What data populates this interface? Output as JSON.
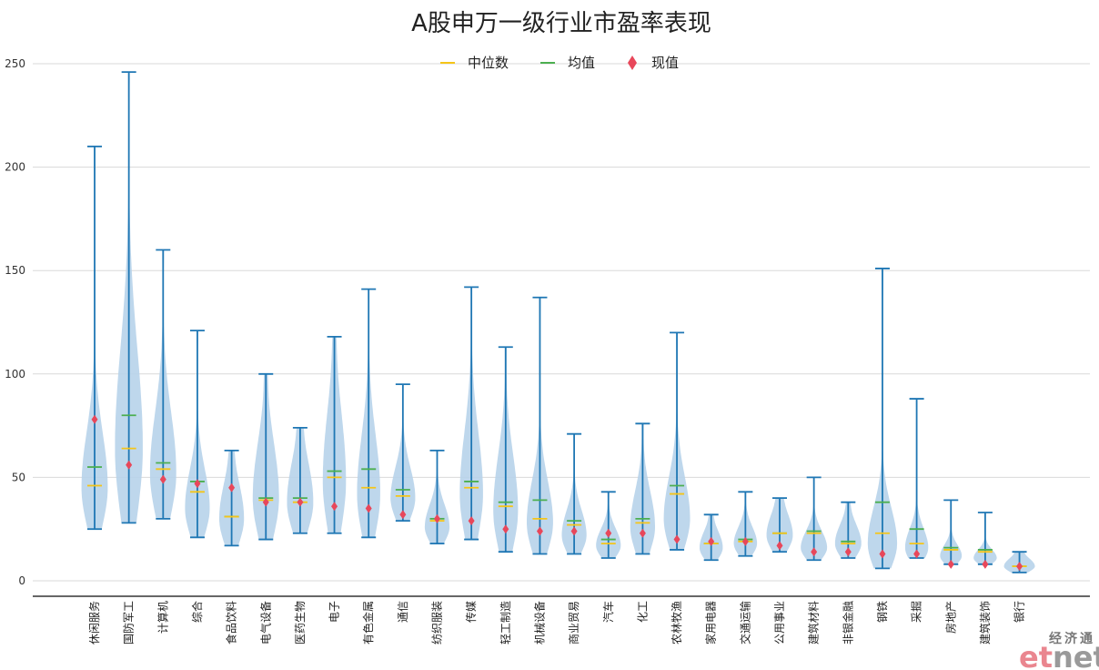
{
  "chart_data": {
    "type": "violin",
    "title": "A股申万一级行业市盈率表现",
    "ylim": [
      -7,
      262
    ],
    "yticks": [
      0,
      50,
      100,
      150,
      200,
      250
    ],
    "grid": "horizontal",
    "legend_position": "top-center",
    "legend": [
      {
        "key": "median",
        "label": "中位数",
        "marker": "line",
        "color": "#f5c518"
      },
      {
        "key": "mean",
        "label": "均值",
        "marker": "line",
        "color": "#4caf50"
      },
      {
        "key": "current",
        "label": "现值",
        "marker": "diamond",
        "color": "#e8475a"
      }
    ],
    "colors": {
      "whisker": "#1f77b4",
      "violin": "#b7d3ea",
      "median": "#f5c518",
      "mean": "#4caf50",
      "current": "#e8475a",
      "grid": "#d9d9d9",
      "axis": "#333333"
    },
    "categories": [
      "休闲服务",
      "国防军工",
      "计算机",
      "综合",
      "食品饮料",
      "电气设备",
      "医药生物",
      "电子",
      "有色金属",
      "通信",
      "纺织服装",
      "传媒",
      "轻工制造",
      "机械设备",
      "商业贸易",
      "汽车",
      "化工",
      "农林牧渔",
      "家用电器",
      "交通运输",
      "公用事业",
      "建筑材料",
      "非银金融",
      "钢铁",
      "采掘",
      "房地产",
      "建筑装饰",
      "银行"
    ],
    "series": [
      {
        "name": "休闲服务",
        "min": 25,
        "max": 210,
        "median": 46,
        "mean": 55,
        "current": 78,
        "peak": 45,
        "width": 0.85
      },
      {
        "name": "国防军工",
        "min": 28,
        "max": 246,
        "median": 64,
        "mean": 80,
        "current": 56,
        "peak": 64,
        "width": 0.9
      },
      {
        "name": "计算机",
        "min": 30,
        "max": 160,
        "median": 54,
        "mean": 57,
        "current": 49,
        "peak": 52,
        "width": 0.85
      },
      {
        "name": "综合",
        "min": 21,
        "max": 121,
        "median": 43,
        "mean": 48,
        "current": 47,
        "peak": 35,
        "width": 0.8
      },
      {
        "name": "食品饮料",
        "min": 17,
        "max": 63,
        "median": 31,
        "mean": 31,
        "current": 45,
        "peak": 30,
        "width": 0.8
      },
      {
        "name": "电气设备",
        "min": 20,
        "max": 100,
        "median": 39,
        "mean": 40,
        "current": 38,
        "peak": 40,
        "width": 0.85
      },
      {
        "name": "医药生物",
        "min": 23,
        "max": 74,
        "median": 38,
        "mean": 40,
        "current": 38,
        "peak": 38,
        "width": 0.85
      },
      {
        "name": "电子",
        "min": 23,
        "max": 118,
        "median": 50,
        "mean": 53,
        "current": 36,
        "peak": 48,
        "width": 0.75
      },
      {
        "name": "有色金属",
        "min": 21,
        "max": 141,
        "median": 45,
        "mean": 54,
        "current": 35,
        "peak": 42,
        "width": 0.75
      },
      {
        "name": "通信",
        "min": 29,
        "max": 95,
        "median": 41,
        "mean": 44,
        "current": 32,
        "peak": 40,
        "width": 0.8
      },
      {
        "name": "纺织服装",
        "min": 18,
        "max": 63,
        "median": 29,
        "mean": 30,
        "current": 30,
        "peak": 26,
        "width": 0.8
      },
      {
        "name": "传媒",
        "min": 20,
        "max": 142,
        "median": 45,
        "mean": 48,
        "current": 29,
        "peak": 42,
        "width": 0.75
      },
      {
        "name": "轻工制造",
        "min": 14,
        "max": 113,
        "median": 36,
        "mean": 38,
        "current": 25,
        "peak": 34,
        "width": 0.8
      },
      {
        "name": "机械设备",
        "min": 13,
        "max": 137,
        "median": 30,
        "mean": 39,
        "current": 24,
        "peak": 28,
        "width": 0.85
      },
      {
        "name": "商业贸易",
        "min": 13,
        "max": 71,
        "median": 27,
        "mean": 29,
        "current": 24,
        "peak": 22,
        "width": 0.8
      },
      {
        "name": "汽车",
        "min": 11,
        "max": 43,
        "median": 18,
        "mean": 20,
        "current": 23,
        "peak": 17,
        "width": 0.8
      },
      {
        "name": "化工",
        "min": 13,
        "max": 76,
        "median": 28,
        "mean": 30,
        "current": 23,
        "peak": 26,
        "width": 0.8
      },
      {
        "name": "农林牧渔",
        "min": 15,
        "max": 120,
        "median": 42,
        "mean": 46,
        "current": 20,
        "peak": 30,
        "width": 0.85
      },
      {
        "name": "家用电器",
        "min": 10,
        "max": 32,
        "median": 18,
        "mean": 18,
        "current": 19,
        "peak": 16,
        "width": 0.75
      },
      {
        "name": "交通运输",
        "min": 12,
        "max": 43,
        "median": 19,
        "mean": 20,
        "current": 19,
        "peak": 18,
        "width": 0.75
      },
      {
        "name": "公用事业",
        "min": 14,
        "max": 40,
        "median": 23,
        "mean": 23,
        "current": 17,
        "peak": 22,
        "width": 0.85
      },
      {
        "name": "建筑材料",
        "min": 10,
        "max": 50,
        "median": 23,
        "mean": 24,
        "current": 14,
        "peak": 16,
        "width": 0.85
      },
      {
        "name": "非银金融",
        "min": 11,
        "max": 38,
        "median": 18,
        "mean": 19,
        "current": 14,
        "peak": 18,
        "width": 0.85
      },
      {
        "name": "钢铁",
        "min": 6,
        "max": 151,
        "median": 23,
        "mean": 38,
        "current": 13,
        "peak": 18,
        "width": 0.95
      },
      {
        "name": "采掘",
        "min": 11,
        "max": 88,
        "median": 18,
        "mean": 25,
        "current": 13,
        "peak": 16,
        "width": 0.75
      },
      {
        "name": "房地产",
        "min": 8,
        "max": 39,
        "median": 15,
        "mean": 16,
        "current": 8,
        "peak": 12,
        "width": 0.7
      },
      {
        "name": "建筑装饰",
        "min": 8,
        "max": 33,
        "median": 14,
        "mean": 15,
        "current": 8,
        "peak": 11,
        "width": 0.75
      },
      {
        "name": "银行",
        "min": 4,
        "max": 14,
        "median": 7,
        "mean": 7,
        "current": 7,
        "peak": 7,
        "width": 1.0
      }
    ]
  },
  "watermark": {
    "cn": "经济通",
    "en_e": "et",
    "en_n": "net"
  }
}
